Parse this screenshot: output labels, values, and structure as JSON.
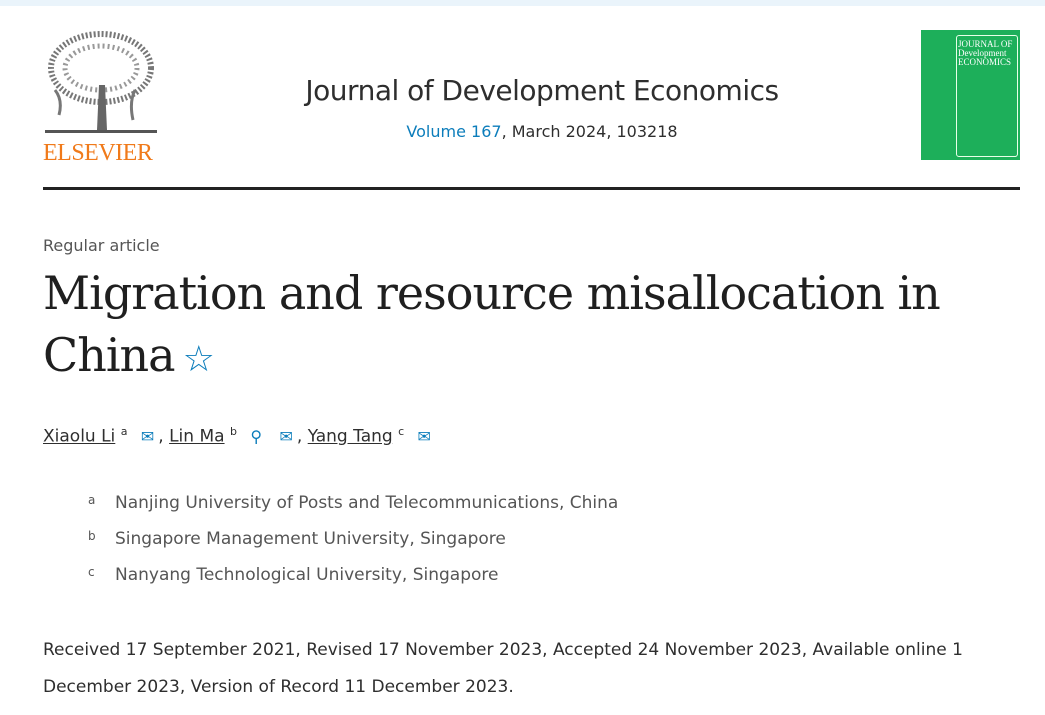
{
  "header": {
    "publisher_logo_text": "ELSEVIER",
    "journal_title": "Journal of Development Economics",
    "volume_link": "Volume 167",
    "issue_info": ", March 2024, 103218",
    "cover_text": "JOURNAL OF Development ECONOMICS"
  },
  "article": {
    "type": "Regular article",
    "title": "Migration and resource misallocation in China",
    "title_icon": "star-icon",
    "authors": [
      {
        "name": "Xiaolu Li",
        "sup": "a",
        "icons": [
          "mail-icon"
        ]
      },
      {
        "name": "Lin Ma",
        "sup": "b",
        "icons": [
          "person-icon",
          "mail-icon"
        ]
      },
      {
        "name": "Yang Tang",
        "sup": "c",
        "icons": [
          "mail-icon"
        ]
      }
    ],
    "separator": ",",
    "affiliations": [
      {
        "sup": "a",
        "text": "Nanjing University of Posts and Telecommunications, China"
      },
      {
        "sup": "b",
        "text": "Singapore Management University, Singapore"
      },
      {
        "sup": "c",
        "text": "Nanyang Technological University, Singapore"
      }
    ],
    "dates": "Received 17 September 2021, Revised 17 November 2023, Accepted 24 November 2023, Available online 1 December 2023, Version of Record 11 December 2023."
  },
  "colors": {
    "link": "#0c7dbb",
    "elsevier": "#f07a1a",
    "cover": "#1daf5a"
  }
}
